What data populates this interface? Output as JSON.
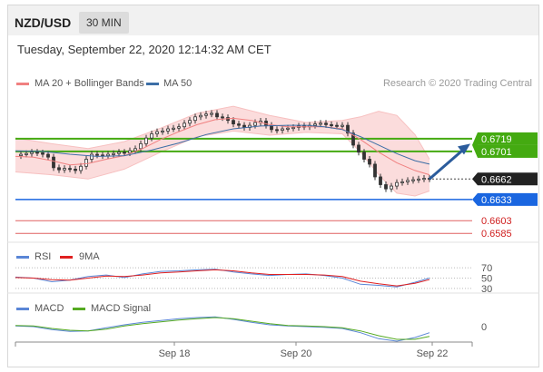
{
  "header": {
    "pair": "NZD/USD",
    "timeframe": "30 MIN",
    "datetime": "Tuesday, September 22, 2020 12:14:32 AM CET"
  },
  "colors": {
    "price_candles": "#333333",
    "bollinger_band": "#f7c0c0",
    "ma20": "#f08080",
    "ma50": "#3c6ea6",
    "resistance_lines": "#44aa11",
    "support_line": "#1a66e0",
    "support_red_lines": "#e06060",
    "rsi": "#5a86d6",
    "rsi_9ma": "#e02020",
    "macd": "#5a86d6",
    "macd_signal": "#55aa22",
    "arrow": "#2b5c9c",
    "current_price_bg": "#222222"
  },
  "chart_data": [
    {
      "type": "line",
      "panel": "price",
      "legend": [
        "MA 20 + Bollinger Bands",
        "MA 50"
      ],
      "credit": "Research © 2020 Trading Central",
      "x_ticks": [
        "Sep 18",
        "Sep 20",
        "Sep 22"
      ],
      "ylim": [
        0.6575,
        0.6787
      ],
      "series": [
        {
          "name": "Price",
          "x": [
            0,
            6,
            12,
            18,
            24,
            30,
            36,
            42,
            48,
            54,
            60,
            66,
            72,
            78,
            84,
            90,
            96,
            102,
            108,
            114,
            120,
            126,
            132,
            138,
            144,
            150,
            156,
            162,
            168,
            174,
            180,
            186,
            192,
            198,
            204,
            210,
            216,
            222,
            228,
            234,
            240,
            246,
            252,
            258,
            264,
            270,
            276,
            282,
            288,
            294,
            300,
            306,
            312,
            318,
            324,
            330,
            336,
            342,
            348,
            354,
            360,
            366,
            372,
            378,
            384,
            390,
            396,
            402,
            408,
            414,
            420,
            426,
            432,
            438,
            444,
            450,
            456
          ],
          "values": [
            0.6695,
            0.6697,
            0.6698,
            0.67,
            0.6699,
            0.6697,
            0.6693,
            0.6678,
            0.6675,
            0.6677,
            0.6676,
            0.6674,
            0.668,
            0.669,
            0.6697,
            0.6696,
            0.6695,
            0.6697,
            0.6698,
            0.67,
            0.6699,
            0.6702,
            0.6705,
            0.6712,
            0.672,
            0.6726,
            0.6729,
            0.673,
            0.6733,
            0.6734,
            0.6736,
            0.6741,
            0.6745,
            0.675,
            0.6752,
            0.6754,
            0.6755,
            0.675,
            0.6749,
            0.6745,
            0.674,
            0.6738,
            0.6735,
            0.6738,
            0.6742,
            0.6744,
            0.6738,
            0.6732,
            0.6731,
            0.6733,
            0.6734,
            0.6735,
            0.6737,
            0.6736,
            0.6738,
            0.674,
            0.6741,
            0.6739,
            0.6738,
            0.6737,
            0.6738,
            0.6727,
            0.671,
            0.67,
            0.669,
            0.6683,
            0.6665,
            0.6654,
            0.6648,
            0.6652,
            0.6657,
            0.6658,
            0.666,
            0.6661,
            0.6662,
            0.6663,
            0.6662
          ]
        },
        {
          "name": "MA 20",
          "x": [
            0,
            20,
            40,
            60,
            80,
            100,
            120,
            140,
            160,
            180,
            200,
            220,
            240,
            260,
            280,
            300,
            320,
            340,
            360,
            380,
            400,
            420,
            440,
            456
          ],
          "values": [
            0.6694,
            0.6693,
            0.6688,
            0.6682,
            0.6684,
            0.669,
            0.6695,
            0.6705,
            0.6718,
            0.6729,
            0.6739,
            0.6746,
            0.6748,
            0.6745,
            0.6739,
            0.6736,
            0.6736,
            0.6736,
            0.6733,
            0.6718,
            0.67,
            0.6685,
            0.6674,
            0.6668
          ]
        },
        {
          "name": "MA 50",
          "x": [
            0,
            30,
            60,
            90,
            120,
            150,
            180,
            210,
            240,
            270,
            300,
            320,
            340,
            360,
            380,
            400,
            420,
            440,
            456
          ],
          "values": [
            0.6702,
            0.6701,
            0.6697,
            0.6694,
            0.6695,
            0.6703,
            0.6713,
            0.6725,
            0.6733,
            0.6737,
            0.6738,
            0.6738,
            0.6736,
            0.6732,
            0.6722,
            0.671,
            0.6698,
            0.6688,
            0.6683
          ]
        },
        {
          "name": "BB Upper",
          "x": [
            0,
            40,
            80,
            120,
            160,
            200,
            240,
            280,
            320,
            360,
            380,
            400,
            420,
            440,
            456
          ],
          "values": [
            0.672,
            0.6712,
            0.6705,
            0.6715,
            0.6734,
            0.6755,
            0.6765,
            0.6752,
            0.6742,
            0.6745,
            0.675,
            0.6758,
            0.6752,
            0.6725,
            0.669
          ]
        },
        {
          "name": "BB Lower",
          "x": [
            0,
            40,
            80,
            120,
            160,
            200,
            240,
            280,
            320,
            360,
            380,
            400,
            420,
            440,
            456
          ],
          "values": [
            0.6672,
            0.6668,
            0.6662,
            0.6676,
            0.67,
            0.6722,
            0.673,
            0.6724,
            0.6728,
            0.6726,
            0.67,
            0.6668,
            0.6642,
            0.6638,
            0.6645
          ]
        }
      ],
      "levels": [
        {
          "value": 0.6719,
          "label": "0.6719",
          "kind": "resistance"
        },
        {
          "value": 0.6701,
          "label": "0.6701",
          "kind": "resistance"
        },
        {
          "value": 0.6662,
          "label": "0.6662",
          "kind": "current"
        },
        {
          "value": 0.6633,
          "label": "0.6633",
          "kind": "support"
        },
        {
          "value": 0.6603,
          "label": "0.6603",
          "kind": "support-minor"
        },
        {
          "value": 0.6585,
          "label": "0.6585",
          "kind": "support-minor"
        }
      ]
    },
    {
      "type": "line",
      "panel": "rsi",
      "legend": [
        "RSI",
        "9MA"
      ],
      "y_ticks": [
        "70",
        "50",
        "30"
      ],
      "ylim": [
        0,
        100
      ],
      "series": [
        {
          "name": "RSI",
          "x": [
            0,
            20,
            40,
            60,
            80,
            100,
            120,
            140,
            160,
            180,
            200,
            220,
            240,
            260,
            280,
            300,
            320,
            340,
            360,
            380,
            400,
            420,
            440,
            456
          ],
          "values": [
            52,
            50,
            43,
            46,
            53,
            56,
            51,
            58,
            63,
            64,
            66,
            67,
            62,
            58,
            55,
            57,
            58,
            55,
            50,
            38,
            36,
            33,
            42,
            50
          ]
        },
        {
          "name": "9MA",
          "x": [
            0,
            20,
            40,
            60,
            80,
            100,
            120,
            140,
            160,
            180,
            200,
            220,
            240,
            260,
            280,
            300,
            320,
            340,
            360,
            380,
            400,
            420,
            440,
            456
          ],
          "values": [
            51,
            50,
            47,
            46,
            50,
            54,
            53,
            56,
            60,
            62,
            64,
            66,
            64,
            60,
            57,
            57,
            57,
            56,
            53,
            44,
            39,
            35,
            40,
            47
          ]
        }
      ]
    },
    {
      "type": "line",
      "panel": "macd",
      "legend": [
        "MACD",
        "MACD Signal"
      ],
      "y_ticks": [
        "0"
      ],
      "ylim": [
        -0.0045,
        0.0045
      ],
      "series": [
        {
          "name": "MACD",
          "x": [
            0,
            20,
            40,
            60,
            80,
            100,
            120,
            140,
            160,
            180,
            200,
            220,
            240,
            260,
            280,
            300,
            320,
            340,
            360,
            380,
            400,
            420,
            440,
            456
          ],
          "values": [
            0.0001,
            0.0,
            -0.0005,
            -0.0008,
            -0.0007,
            -0.0002,
            0.0003,
            0.0007,
            0.001,
            0.0013,
            0.0015,
            0.0016,
            0.0012,
            0.0007,
            0.0003,
            0.0001,
            0.0,
            -0.0001,
            -0.0003,
            -0.001,
            -0.002,
            -0.0024,
            -0.0018,
            -0.001
          ]
        },
        {
          "name": "MACD Signal",
          "x": [
            0,
            20,
            40,
            60,
            80,
            100,
            120,
            140,
            160,
            180,
            200,
            220,
            240,
            260,
            280,
            300,
            320,
            340,
            360,
            380,
            400,
            420,
            440,
            456
          ],
          "values": [
            0.0002,
            0.0001,
            -0.0003,
            -0.0006,
            -0.0007,
            -0.0004,
            0.0001,
            0.0005,
            0.0008,
            0.0011,
            0.0013,
            0.0015,
            0.0013,
            0.0009,
            0.0005,
            0.0002,
            0.0001,
            0.0,
            -0.0002,
            -0.0007,
            -0.0015,
            -0.0021,
            -0.0021,
            -0.0016
          ]
        }
      ]
    }
  ]
}
